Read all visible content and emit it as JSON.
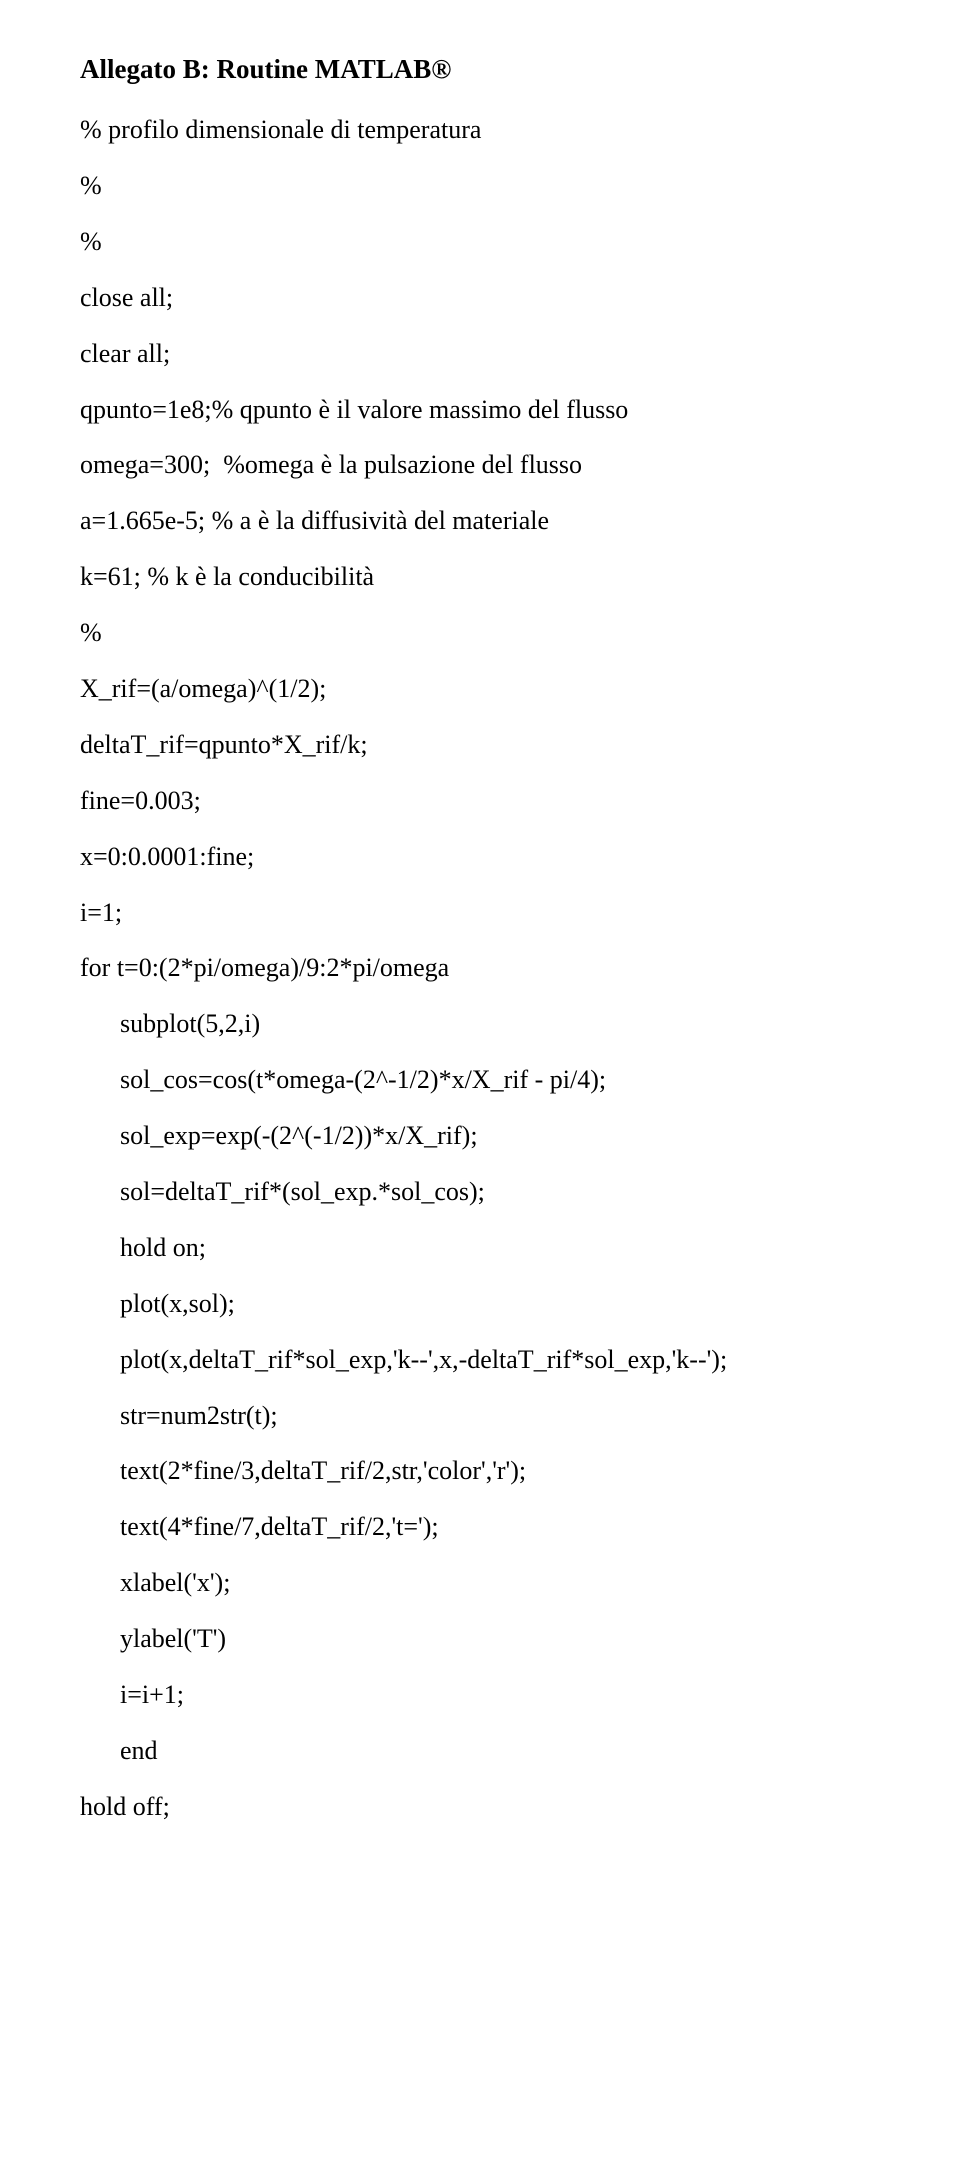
{
  "title": "Allegato B: Routine MATLAB®",
  "lines": [
    {
      "text": "% profilo dimensionale di temperatura",
      "indent": false
    },
    {
      "text": "%",
      "indent": false
    },
    {
      "text": "%",
      "indent": false
    },
    {
      "text": "close all;",
      "indent": false
    },
    {
      "text": "clear all;",
      "indent": false
    },
    {
      "text": "qpunto=1e8;% qpunto è il valore massimo del flusso",
      "indent": false
    },
    {
      "text": "omega=300;  %omega è la pulsazione del flusso",
      "indent": false
    },
    {
      "text": "a=1.665e-5; % a è la diffusività del materiale",
      "indent": false
    },
    {
      "text": "k=61; % k è la conducibilità",
      "indent": false
    },
    {
      "text": "%",
      "indent": false
    },
    {
      "text": "X_rif=(a/omega)^(1/2);",
      "indent": false
    },
    {
      "text": "deltaT_rif=qpunto*X_rif/k;",
      "indent": false
    },
    {
      "text": "fine=0.003;",
      "indent": false
    },
    {
      "text": "x=0:0.0001:fine;",
      "indent": false
    },
    {
      "text": "i=1;",
      "indent": false
    },
    {
      "text": "for t=0:(2*pi/omega)/9:2*pi/omega",
      "indent": false
    },
    {
      "text": "subplot(5,2,i)",
      "indent": true
    },
    {
      "text": "sol_cos=cos(t*omega-(2^-1/2)*x/X_rif - pi/4);",
      "indent": true
    },
    {
      "text": "sol_exp=exp(-(2^(-1/2))*x/X_rif);",
      "indent": true
    },
    {
      "text": "sol=deltaT_rif*(sol_exp.*sol_cos);",
      "indent": true
    },
    {
      "text": "hold on;",
      "indent": true
    },
    {
      "text": "plot(x,sol);",
      "indent": true
    },
    {
      "text": "plot(x,deltaT_rif*sol_exp,'k--',x,-deltaT_rif*sol_exp,'k--');",
      "indent": true
    },
    {
      "text": "str=num2str(t);",
      "indent": true
    },
    {
      "text": "text(2*fine/3,deltaT_rif/2,str,'color','r');",
      "indent": true
    },
    {
      "text": "text(4*fine/7,deltaT_rif/2,'t=');",
      "indent": true
    },
    {
      "text": "xlabel('x');",
      "indent": true
    },
    {
      "text": "ylabel('T')",
      "indent": true
    },
    {
      "text": "i=i+1;",
      "indent": true
    },
    {
      "text": "end",
      "indent": true
    },
    {
      "text": "hold off;",
      "indent": false
    }
  ]
}
